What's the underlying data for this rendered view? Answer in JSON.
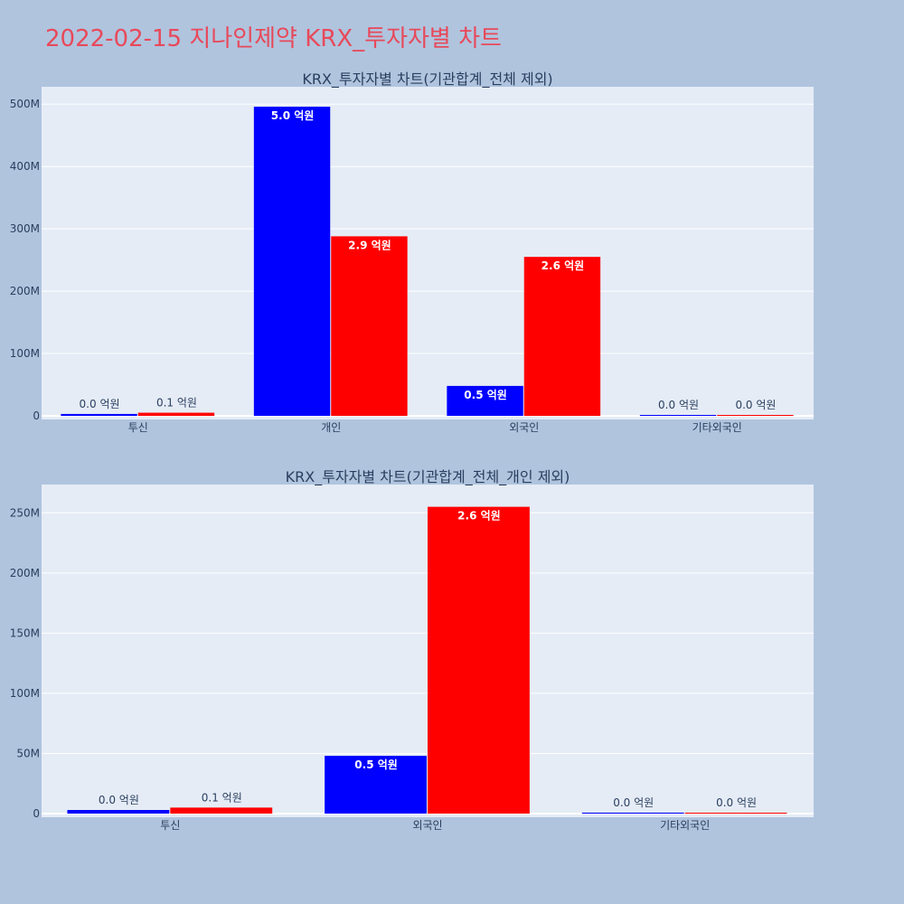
{
  "title": "2022-02-15 지나인제약 KRX_투자자별 차트",
  "colors": {
    "background": "#b0c4de",
    "plot_bg": "#e5ecf6",
    "series_a": "#0000ff",
    "series_b": "#ff0000",
    "title": "#e8495a"
  },
  "chart_data": [
    {
      "type": "bar",
      "title": "KRX_투자자별 차트(기관합계_전체 제외)",
      "categories": [
        "투신",
        "개인",
        "외국인",
        "기타외국인"
      ],
      "series": [
        {
          "values": [
            3000000,
            496000000,
            48000000,
            800000
          ],
          "labels": [
            "0.0 억원",
            "5.0 억원",
            "0.5 억원",
            "0.0 억원"
          ]
        },
        {
          "values": [
            5000000,
            288000000,
            255000000,
            600000
          ],
          "labels": [
            "0.1 억원",
            "2.9 억원",
            "2.6 억원",
            "0.0 억원"
          ]
        }
      ],
      "ylim": [
        0,
        525000000
      ],
      "yticks": [
        0,
        100000000,
        200000000,
        300000000,
        400000000,
        500000000
      ],
      "ytick_labels": [
        "0",
        "100M",
        "200M",
        "300M",
        "400M",
        "500M"
      ],
      "grid": true
    },
    {
      "type": "bar",
      "title": "KRX_투자자별 차트(기관합계_전체_개인 제외)",
      "categories": [
        "투신",
        "외국인",
        "기타외국인"
      ],
      "series": [
        {
          "values": [
            3000000,
            48000000,
            800000
          ],
          "labels": [
            "0.0 억원",
            "0.5 억원",
            "0.0 억원"
          ]
        },
        {
          "values": [
            5000000,
            255000000,
            600000
          ],
          "labels": [
            "0.1 억원",
            "2.6 억원",
            "0.0 억원"
          ]
        }
      ],
      "ylim": [
        0,
        272000000
      ],
      "yticks": [
        0,
        50000000,
        100000000,
        150000000,
        200000000,
        250000000
      ],
      "ytick_labels": [
        "0",
        "50M",
        "100M",
        "150M",
        "200M",
        "250M"
      ],
      "grid": true
    }
  ]
}
